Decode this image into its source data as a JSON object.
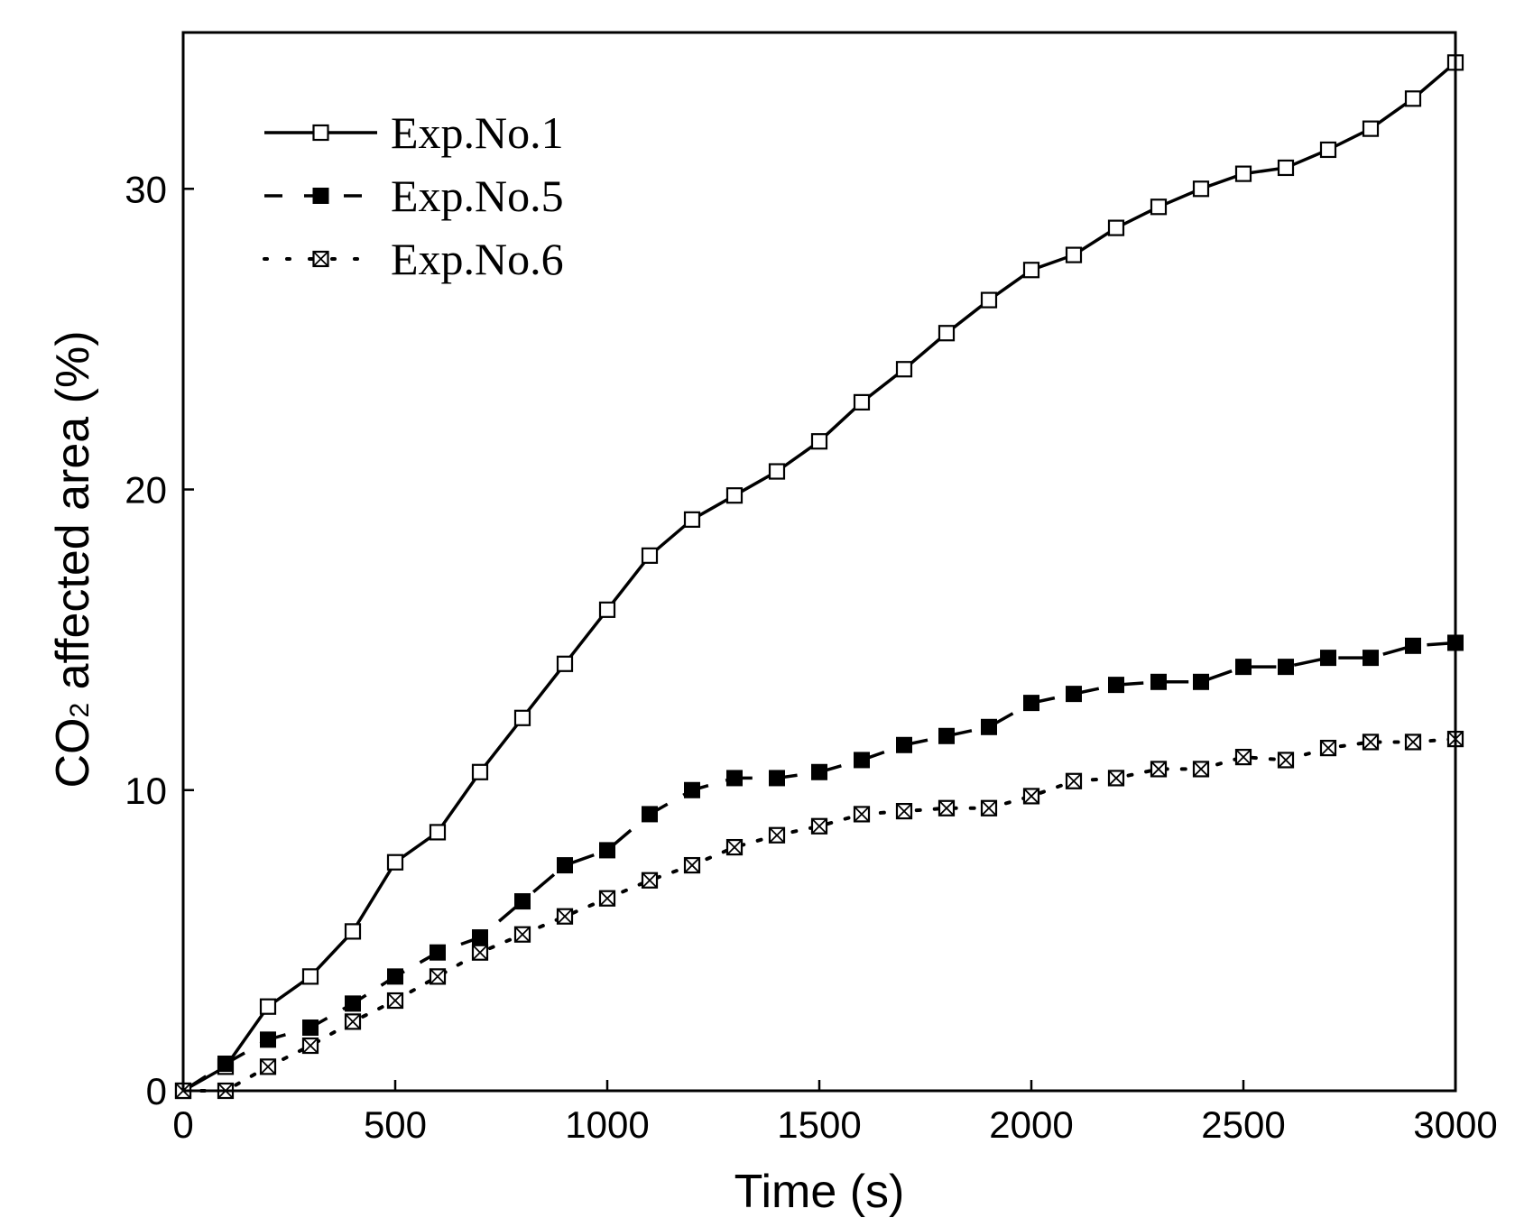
{
  "chart_data": {
    "type": "line",
    "title": "",
    "xlabel": "Time (s)",
    "ylabel": {
      "prefix": "CO",
      "subscript": "2",
      "suffix": " affected area (%)"
    },
    "xlim": [
      0,
      3000
    ],
    "ylim": [
      0,
      35.2
    ],
    "xticks": [
      0,
      500,
      1000,
      1500,
      2000,
      2500,
      3000
    ],
    "yticks": [
      0,
      10,
      20,
      30
    ],
    "legend_position": "top-left",
    "x": [
      0,
      100,
      200,
      300,
      400,
      500,
      600,
      700,
      800,
      900,
      1000,
      1100,
      1200,
      1300,
      1400,
      1500,
      1600,
      1700,
      1800,
      1900,
      2000,
      2100,
      2200,
      2300,
      2400,
      2500,
      2600,
      2700,
      2800,
      2900,
      3000
    ],
    "series": [
      {
        "name": "Exp.No.1",
        "line_style": "solid",
        "marker": "open-square",
        "values": [
          0,
          0.8,
          2.8,
          3.8,
          5.3,
          7.6,
          8.6,
          10.6,
          12.4,
          14.2,
          16.0,
          17.8,
          19.0,
          19.8,
          20.6,
          21.6,
          22.9,
          24.0,
          25.2,
          26.3,
          27.3,
          27.8,
          28.7,
          29.4,
          30.0,
          30.5,
          30.7,
          31.3,
          32.0,
          33.0,
          34.2
        ]
      },
      {
        "name": "Exp.No.5",
        "line_style": "dashed",
        "marker": "filled-square",
        "values": [
          0,
          0.9,
          1.7,
          2.1,
          2.9,
          3.8,
          4.6,
          5.1,
          6.3,
          7.5,
          8.0,
          9.2,
          10.0,
          10.4,
          10.4,
          10.6,
          11.0,
          11.5,
          11.8,
          12.1,
          12.9,
          13.2,
          13.5,
          13.6,
          13.6,
          14.1,
          14.1,
          14.4,
          14.4,
          14.8,
          14.9
        ]
      },
      {
        "name": "Exp.No.6",
        "line_style": "dotted",
        "marker": "crossed-square",
        "values": [
          0,
          0,
          0.8,
          1.5,
          2.3,
          3.0,
          3.8,
          4.6,
          5.2,
          5.8,
          6.4,
          7.0,
          7.5,
          8.1,
          8.5,
          8.8,
          9.2,
          9.3,
          9.4,
          9.4,
          9.8,
          10.3,
          10.4,
          10.7,
          10.7,
          11.1,
          11.0,
          11.4,
          11.6,
          11.6,
          11.7
        ]
      }
    ]
  }
}
